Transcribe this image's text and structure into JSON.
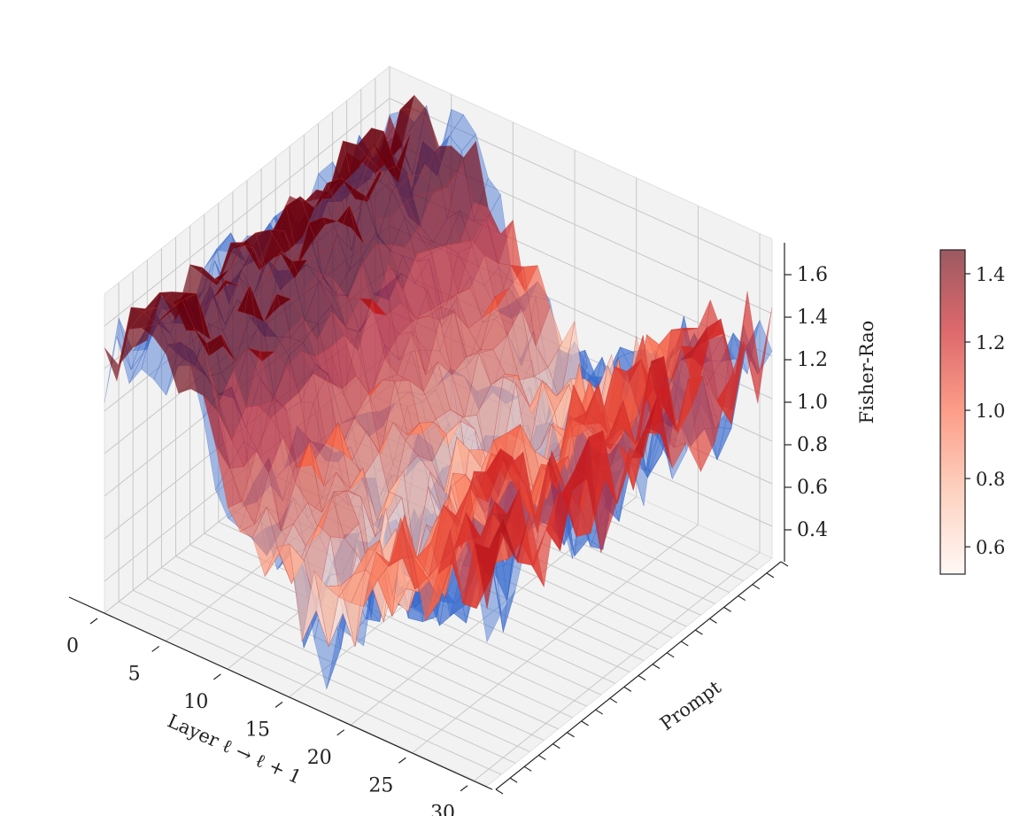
{
  "chart_data": {
    "type": "surface3d",
    "title": "",
    "axes": {
      "x": {
        "label": "Layer ℓ → ℓ + 1",
        "range": [
          0,
          31
        ],
        "ticks": [
          0,
          5,
          10,
          15,
          20,
          25,
          30
        ]
      },
      "y": {
        "label": "Prompt",
        "range": [
          0,
          20
        ],
        "ticks": []
      },
      "z": {
        "label": "Fisher-Rao",
        "range": [
          0.25,
          1.75
        ],
        "ticks": [
          "0.4",
          "0.6",
          "0.8",
          "1.0",
          "1.2",
          "1.4",
          "1.6"
        ]
      }
    },
    "grid": true,
    "colorbar": {
      "placement": "right",
      "range": [
        0.52,
        1.47
      ],
      "ticks": [
        "0.6",
        "0.8",
        "1.0",
        "1.2",
        "1.4"
      ],
      "colormap": [
        "#fff5f0",
        "#fcbba1",
        "#fb6a4a",
        "#cb181d",
        "#67000d"
      ],
      "opacity": 0.65
    },
    "series": [
      {
        "name": "",
        "color": "#3b6fd1"
      },
      {
        "name": "",
        "colormap": "Reds"
      }
    ],
    "profile": {
      "layers": [
        0,
        2,
        4,
        6,
        8,
        10,
        12,
        14,
        16,
        18,
        20,
        22,
        24,
        26,
        28,
        30
      ],
      "mean_fisher_rao": [
        1.45,
        1.55,
        1.6,
        1.55,
        1.35,
        1.15,
        1.0,
        0.85,
        0.72,
        0.68,
        0.8,
        0.95,
        1.05,
        1.1,
        1.15,
        1.2
      ]
    }
  }
}
